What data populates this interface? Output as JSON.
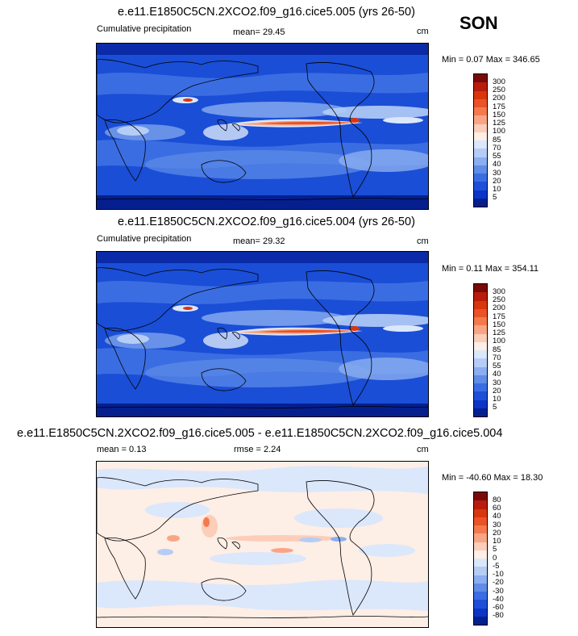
{
  "season": "SON",
  "panels": [
    {
      "id": "panel1",
      "title": "e.e11.E1850C5CN.2XCO2.f09_g16.cice5.005 (yrs 26-50)",
      "left_label": "Cumulative precipitation",
      "center_label": "mean=  29.45",
      "units": "cm",
      "minmax": "Min =   0.07 Max = 346.65",
      "colorbar": {
        "labels": [
          "300",
          "250",
          "200",
          "175",
          "150",
          "125",
          "100",
          "85",
          "70",
          "55",
          "40",
          "30",
          "20",
          "10",
          "5"
        ],
        "colors": [
          "#7a0a0a",
          "#b81c0c",
          "#d9350f",
          "#ea5228",
          "#f47a4e",
          "#f9a585",
          "#fccdb8",
          "#fdeee6",
          "#dbe7fb",
          "#b5cdf6",
          "#8aaef0",
          "#5f8de8",
          "#3b6de2",
          "#1f4fd8",
          "#0c34c6",
          "#051f8f"
        ]
      }
    },
    {
      "id": "panel2",
      "title": "e.e11.E1850C5CN.2XCO2.f09_g16.cice5.004 (yrs 26-50)",
      "left_label": "Cumulative precipitation",
      "center_label": "mean=  29.32",
      "units": "cm",
      "minmax": "Min =   0.11 Max = 354.11",
      "colorbar": {
        "labels": [
          "300",
          "250",
          "200",
          "175",
          "150",
          "125",
          "100",
          "85",
          "70",
          "55",
          "40",
          "30",
          "20",
          "10",
          "5"
        ],
        "colors": [
          "#7a0a0a",
          "#b81c0c",
          "#d9350f",
          "#ea5228",
          "#f47a4e",
          "#f9a585",
          "#fccdb8",
          "#fdeee6",
          "#dbe7fb",
          "#b5cdf6",
          "#8aaef0",
          "#5f8de8",
          "#3b6de2",
          "#1f4fd8",
          "#0c34c6",
          "#051f8f"
        ]
      }
    },
    {
      "id": "panel3",
      "title": "e.e11.E1850C5CN.2XCO2.f09_g16.cice5.005 - e.e11.E1850C5CN.2XCO2.f09_g16.cice5.004",
      "left_label": "mean =   0.13",
      "center_label": "rmse =   2.24",
      "units": "cm",
      "minmax": "Min = -40.60 Max =  18.30",
      "colorbar": {
        "labels": [
          "80",
          "60",
          "40",
          "30",
          "20",
          "10",
          "5",
          "0",
          "-5",
          "-10",
          "-20",
          "-30",
          "-40",
          "-60",
          "-80"
        ],
        "colors": [
          "#7a0a0a",
          "#b81c0c",
          "#d9350f",
          "#ea5228",
          "#f47a4e",
          "#f9a585",
          "#fccdb8",
          "#fdeee6",
          "#dbe7fb",
          "#b5cdf6",
          "#8aaef0",
          "#5f8de8",
          "#3b6de2",
          "#1f4fd8",
          "#0c34c6",
          "#051f8f"
        ]
      }
    }
  ],
  "chart_data": [
    {
      "type": "heatmap",
      "title": "e.e11.E1850C5CN.2XCO2.f09_g16.cice5.005 (yrs 26-50)",
      "variable": "Cumulative precipitation",
      "units": "cm",
      "mean": 29.45,
      "min": 0.07,
      "max": 346.65,
      "levels": [
        5,
        10,
        20,
        30,
        40,
        55,
        70,
        85,
        100,
        125,
        150,
        175,
        200,
        250,
        300
      ]
    },
    {
      "type": "heatmap",
      "title": "e.e11.E1850C5CN.2XCO2.f09_g16.cice5.004 (yrs 26-50)",
      "variable": "Cumulative precipitation",
      "units": "cm",
      "mean": 29.32,
      "min": 0.11,
      "max": 354.11,
      "levels": [
        5,
        10,
        20,
        30,
        40,
        55,
        70,
        85,
        100,
        125,
        150,
        175,
        200,
        250,
        300
      ]
    },
    {
      "type": "heatmap",
      "title": "e.e11.E1850C5CN.2XCO2.f09_g16.cice5.005 - e.e11.E1850C5CN.2XCO2.f09_g16.cice5.004",
      "units": "cm",
      "mean": 0.13,
      "rmse": 2.24,
      "min": -40.6,
      "max": 18.3,
      "levels": [
        -80,
        -60,
        -40,
        -30,
        -20,
        -10,
        -5,
        0,
        5,
        10,
        20,
        30,
        40,
        60,
        80
      ]
    }
  ]
}
